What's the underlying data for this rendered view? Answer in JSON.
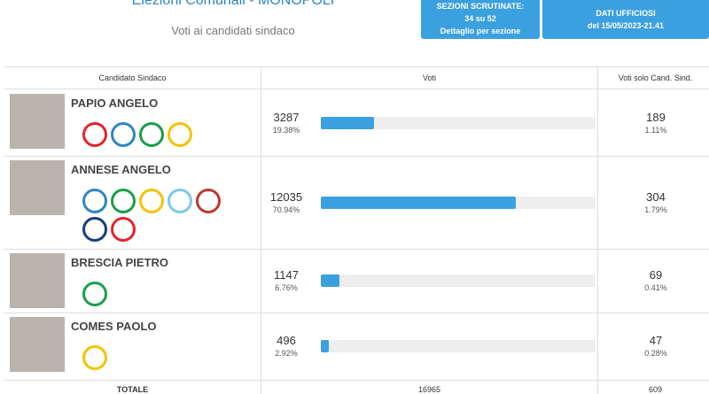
{
  "header": {
    "title": "Elezioni Comunali - MONOPOLI",
    "subtitle": "Voti ai candidati sindaco",
    "boxes": [
      {
        "lines": [
          "SEZIONI SCRUTINATE:",
          "34 su 52",
          "Dettaglio per sezione"
        ]
      },
      {
        "lines": [
          "DATI UFFICIOSI",
          "del 15/05/2023-21.41"
        ]
      }
    ]
  },
  "table": {
    "columns": [
      "Candidato Sindaco",
      "Voti",
      "Voti solo Cand. Sind."
    ],
    "rows": [
      {
        "name": "PAPIO ANGELO",
        "votes": "3287",
        "pct": "19.38%",
        "solo": "189",
        "solo_pct": "1.11%"
      },
      {
        "name": "ANNESE ANGELO",
        "votes": "12035",
        "pct": "70.94%",
        "solo": "304",
        "solo_pct": "1.79%"
      },
      {
        "name": "BRESCIA PIETRO",
        "votes": "1147",
        "pct": "6.76%",
        "solo": "69",
        "solo_pct": "0.41%"
      },
      {
        "name": "COMES PAOLO",
        "votes": "496",
        "pct": "2.92%",
        "solo": "47",
        "solo_pct": "0.28%"
      }
    ],
    "total": {
      "label": "TOTALE",
      "votes": "16965",
      "solo": "609"
    }
  }
}
